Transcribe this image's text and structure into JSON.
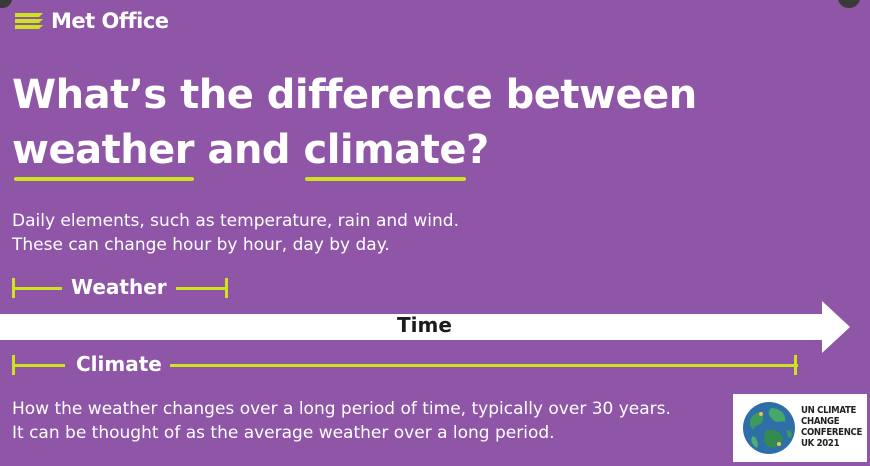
{
  "brand": {
    "name": "Met Office"
  },
  "headline": {
    "line1": "What’s the difference between",
    "line2_word1": "weather",
    "line2_and": " and ",
    "line2_word2": "climate",
    "line2_end": "?"
  },
  "weather": {
    "description_line1": "Daily elements, such as temperature, rain and wind.",
    "description_line2": "These can change hour by hour, day by day.",
    "label": "Weather"
  },
  "timeline": {
    "label": "Time"
  },
  "climate": {
    "label": "Climate",
    "description_line1": "How the weather changes over a long period of time, typically over 30 years.",
    "description_line2": "It can be thought of as the average weather over a long period."
  },
  "cop_logo": {
    "line1": "UN CLIMATE",
    "line2": "CHANGE",
    "line3": "CONFERENCE",
    "line4": "UK 2021"
  },
  "colors": {
    "background": "#8f56a8",
    "accent": "#cde31c",
    "text": "#ffffff",
    "arrow": "#ffffff"
  }
}
